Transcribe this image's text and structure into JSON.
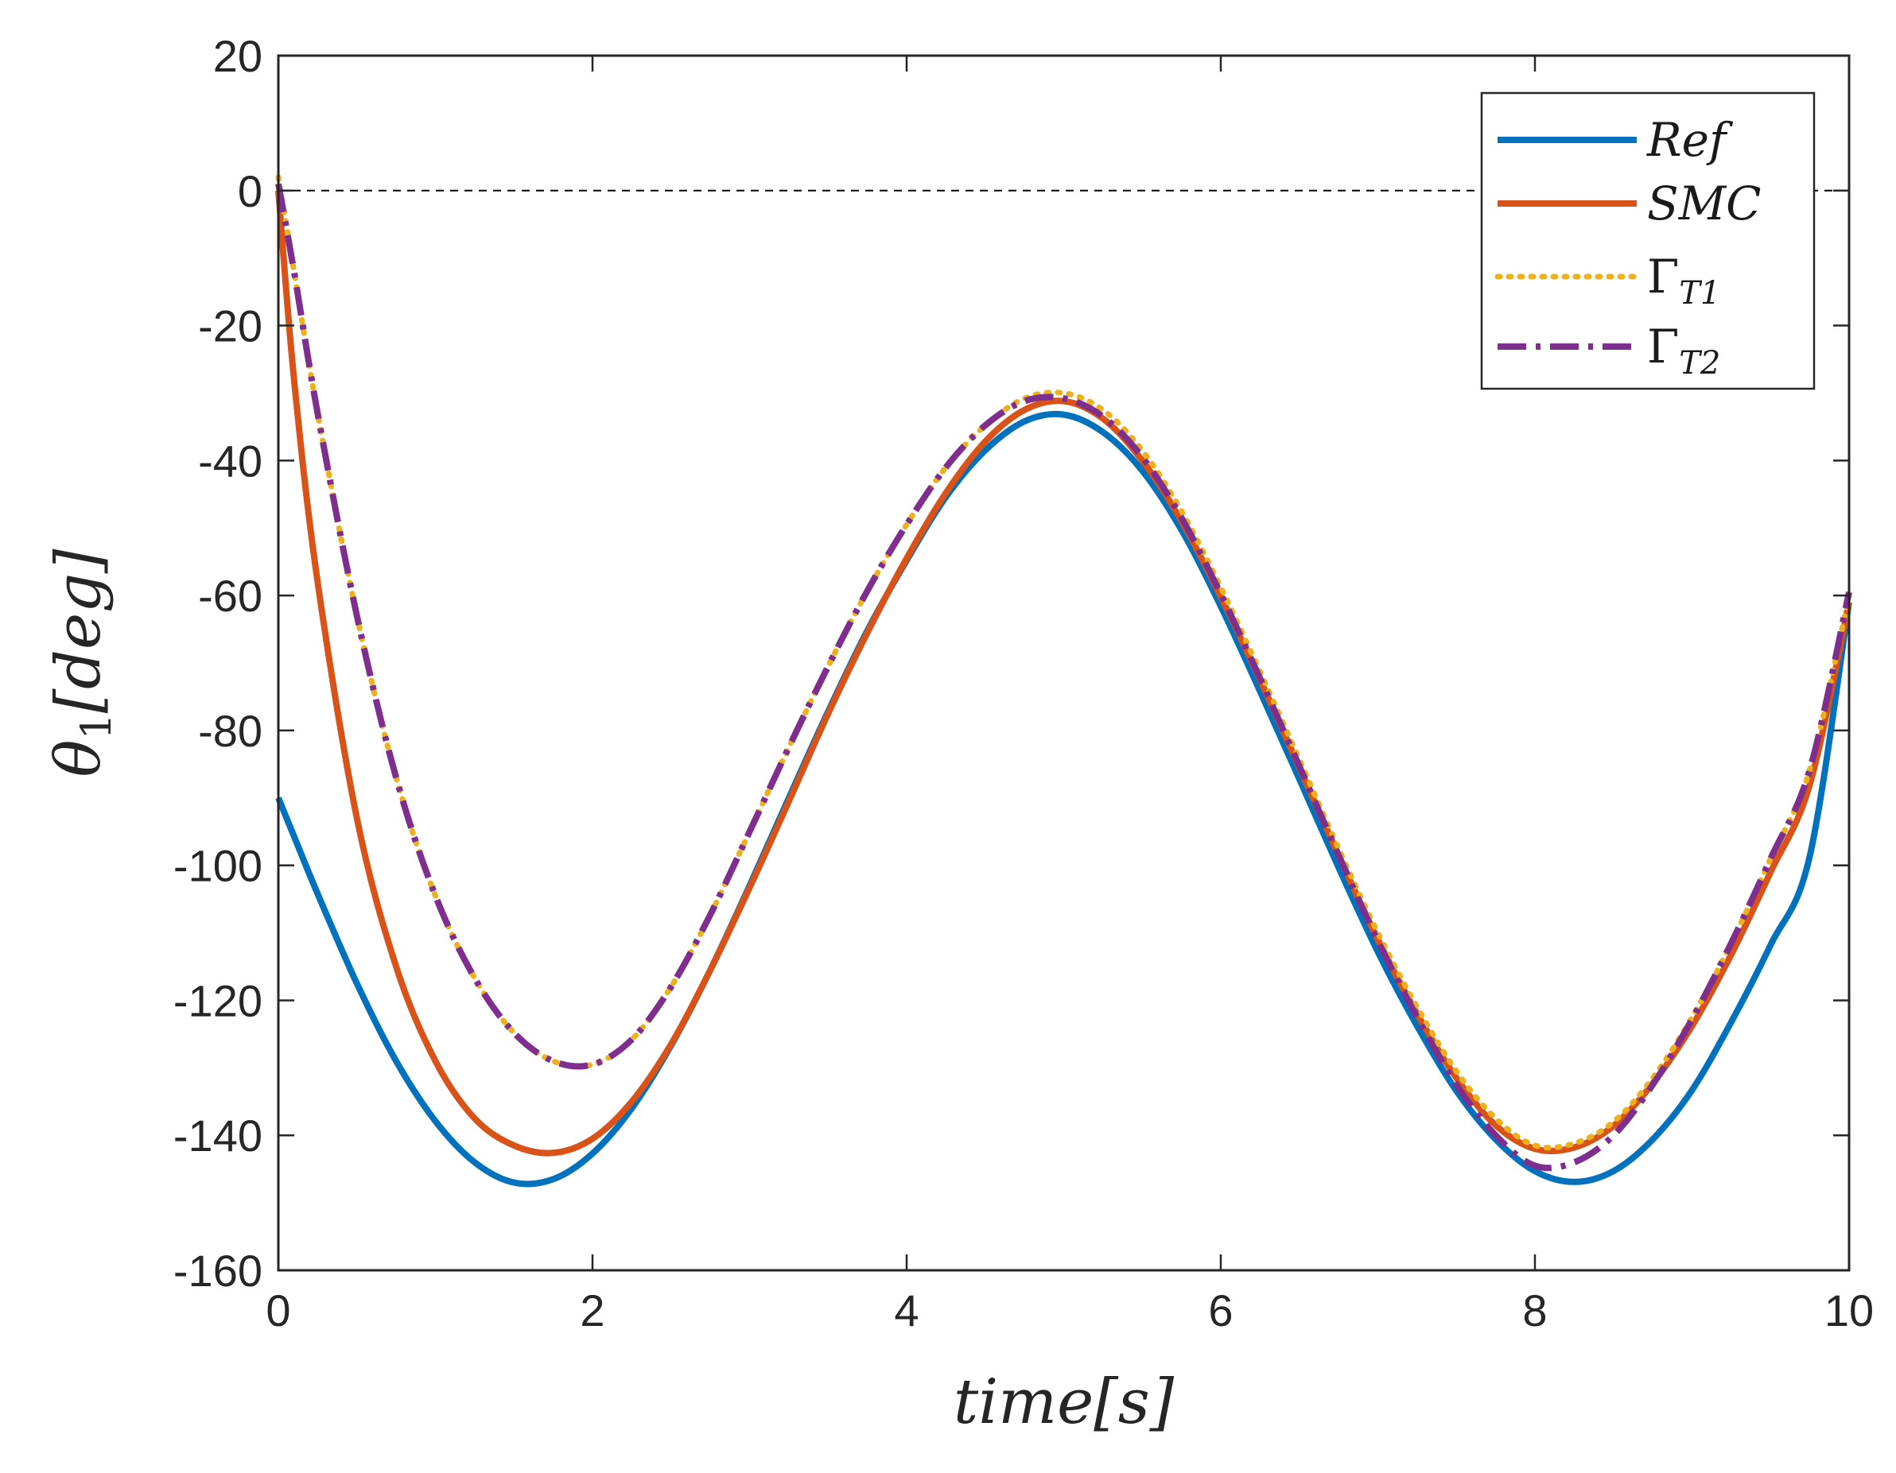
{
  "chart_data": {
    "type": "line",
    "title": "",
    "xlabel": "time[s]",
    "ylabel": "θ1[deg]",
    "ylabel_parts": {
      "symbol": "θ",
      "subscript": "1",
      "unit": "[deg]"
    },
    "xlim": [
      0,
      10
    ],
    "ylim": [
      -160,
      20
    ],
    "xticks": [
      0,
      2,
      4,
      6,
      8,
      10
    ],
    "yticks": [
      20,
      0,
      -20,
      -40,
      -60,
      -80,
      -100,
      -120,
      -140,
      -160
    ],
    "xtick_labels": [
      "0",
      "2",
      "4",
      "6",
      "8",
      "10"
    ],
    "ytick_labels": [
      "20",
      "0",
      "-20",
      "-40",
      "-60",
      "-80",
      "-100",
      "-120",
      "-140",
      "-160"
    ],
    "grid": false,
    "reference_line": {
      "y": 0,
      "style": "dashed",
      "color": "#000000"
    },
    "legend": {
      "position": "top-right",
      "entries": [
        {
          "label": "Ref",
          "base": "Ref",
          "sub": ""
        },
        {
          "label": "SMC",
          "base": "SMC",
          "sub": ""
        },
        {
          "label": "ΓT1",
          "base": "Γ",
          "sub": "T1"
        },
        {
          "label": "ΓT2",
          "base": "Γ",
          "sub": "T2"
        }
      ]
    },
    "x": [
      0,
      0.1,
      0.25,
      0.5,
      0.75,
      1,
      1.25,
      1.5,
      1.75,
      2,
      2.25,
      2.5,
      2.75,
      3,
      3.25,
      3.5,
      3.75,
      4,
      4.25,
      4.5,
      4.75,
      5,
      5.25,
      5.5,
      5.75,
      6,
      6.25,
      6.5,
      6.75,
      7,
      7.25,
      7.5,
      7.75,
      8,
      8.25,
      8.5,
      8.75,
      9,
      9.25,
      9.5,
      9.75,
      10
    ],
    "series": [
      {
        "name": "Ref",
        "color": "#0072BD",
        "style": "solid",
        "values": [
          -90,
          -95.7,
          -104.2,
          -117.5,
          -129.0,
          -137.9,
          -144.0,
          -147.0,
          -146.5,
          -142.7,
          -136.0,
          -126.7,
          -115.5,
          -103.0,
          -90.0,
          -77.2,
          -65.2,
          -54.8,
          -45.4,
          -38.5,
          -34.2,
          -33.2,
          -35.8,
          -41.5,
          -50.3,
          -61.6,
          -74.2,
          -87.2,
          -100.3,
          -112.8,
          -123.8,
          -133.4,
          -140.6,
          -145.3,
          -146.9,
          -145.3,
          -140.6,
          -133.3,
          -123.2,
          -111.8,
          -98.6,
          -61
        ]
      },
      {
        "name": "SMC",
        "color": "#D95319",
        "style": "solid",
        "values": [
          0,
          -28,
          -58,
          -93,
          -115,
          -129.0,
          -137.5,
          -141.5,
          -142.6,
          -140.5,
          -135.0,
          -126.5,
          -115.5,
          -103.3,
          -90.5,
          -77.5,
          -65.5,
          -54.5,
          -44.8,
          -37.2,
          -32.5,
          -31.2,
          -33.8,
          -40.0,
          -49.0,
          -60.2,
          -72.5,
          -85.5,
          -98.5,
          -111.0,
          -122.0,
          -131.5,
          -138.5,
          -142.0,
          -141.8,
          -138.6,
          -132.3,
          -123.8,
          -113.2,
          -101.0,
          -88.0,
          -61
        ]
      },
      {
        "name": "ΓT1",
        "color": "#EDB120",
        "style": "dotted",
        "values": [
          2,
          -12,
          -33,
          -63,
          -87,
          -104.5,
          -116.7,
          -124.8,
          -129.0,
          -129.5,
          -125.8,
          -118.0,
          -107.3,
          -95.0,
          -82.5,
          -70.5,
          -59.3,
          -49.5,
          -41.0,
          -34.8,
          -30.8,
          -30.0,
          -32.5,
          -38.5,
          -47.5,
          -58.8,
          -71.3,
          -84.3,
          -97.5,
          -110.0,
          -121.0,
          -130.5,
          -137.5,
          -141.5,
          -141.2,
          -138.0,
          -131.5,
          -122.5,
          -111.5,
          -99.0,
          -85.8,
          -60
        ]
      },
      {
        "name": "ΓT2",
        "color": "#7E2F8E",
        "style": "dashdot",
        "values": [
          1,
          -12,
          -33,
          -63,
          -87,
          -104.5,
          -116.7,
          -124.8,
          -129.0,
          -129.5,
          -125.8,
          -118.0,
          -107.3,
          -95.0,
          -82.5,
          -70.5,
          -59.3,
          -49.5,
          -41.0,
          -34.8,
          -31.2,
          -30.8,
          -33.5,
          -39.5,
          -48.5,
          -59.8,
          -72.3,
          -85.3,
          -98.5,
          -111.2,
          -122.5,
          -132.5,
          -140.0,
          -144.5,
          -144.0,
          -140.0,
          -132.5,
          -122.8,
          -111.5,
          -99.0,
          -85.8,
          -59.5
        ]
      }
    ]
  }
}
